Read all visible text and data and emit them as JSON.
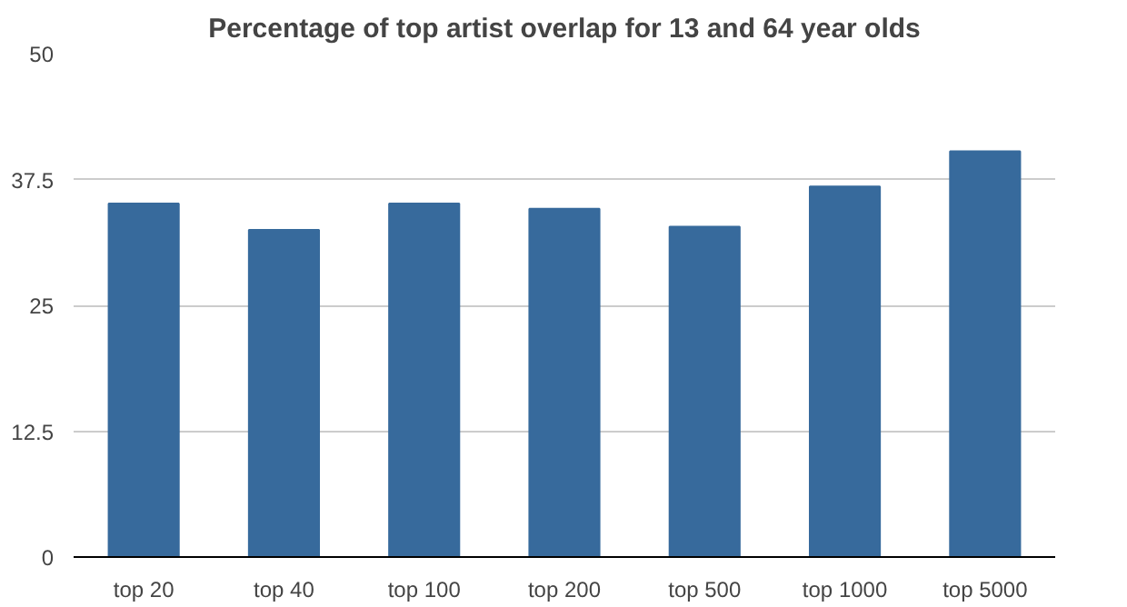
{
  "chart_data": {
    "type": "bar",
    "title": "Percentage of top artist overlap for 13 and 64 year olds",
    "categories": [
      "top 20",
      "top 40",
      "top 100",
      "top 200",
      "top 500",
      "top 1000",
      "top 5000"
    ],
    "values": [
      35.1,
      32.5,
      35.1,
      34.6,
      32.8,
      36.8,
      40.3
    ],
    "color": "#376a9c",
    "ylim": [
      0,
      50
    ],
    "yticks": [
      0,
      12.5,
      25,
      37.5,
      50
    ],
    "grid": "y"
  }
}
